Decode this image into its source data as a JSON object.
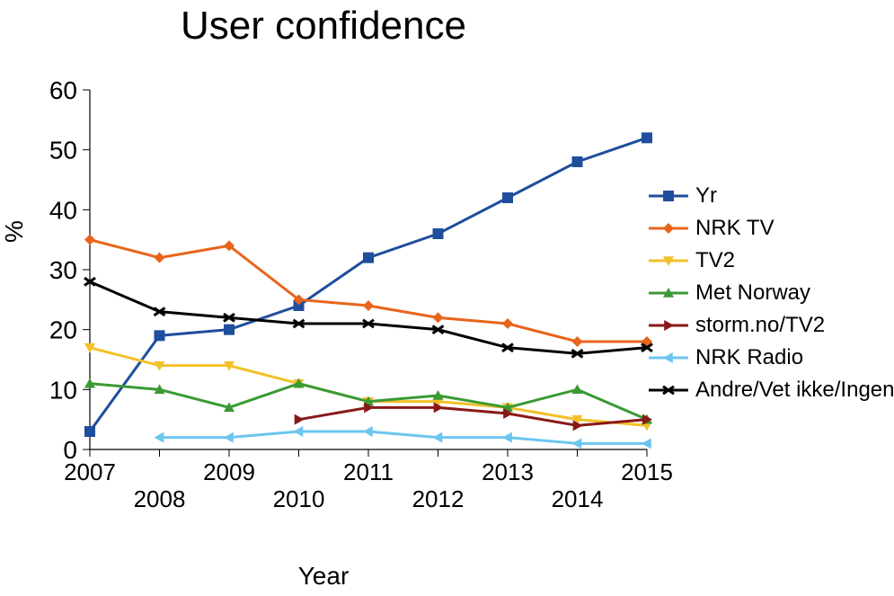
{
  "title": "User confidence",
  "ylabel": "%",
  "xlabel": "Year",
  "ylim": [
    0,
    60
  ],
  "ytick_step": 10,
  "yticks": [
    0,
    10,
    20,
    30,
    40,
    50,
    60
  ],
  "xlim": [
    2007,
    2015
  ],
  "xticks_bottom": [
    2007,
    2009,
    2011,
    2013,
    2015
  ],
  "xticks_off": [
    2008,
    2010,
    2012,
    2014
  ],
  "background_color": "#ffffff",
  "axis_color": "#000000",
  "tick_fontsize": 28,
  "line_width": 3,
  "marker_size": 6,
  "years": [
    2007,
    2008,
    2009,
    2010,
    2011,
    2012,
    2013,
    2014,
    2015
  ],
  "series": [
    {
      "key": "yr",
      "label": "Yr",
      "color": "#1f4e9c",
      "marker": "square",
      "values": [
        3,
        19,
        20,
        24,
        32,
        36,
        42,
        48,
        52
      ]
    },
    {
      "key": "nrktv",
      "label": "NRK TV",
      "color": "#e8641b",
      "marker": "diamond",
      "values": [
        35,
        32,
        34,
        25,
        24,
        22,
        21,
        18,
        18
      ]
    },
    {
      "key": "tv2",
      "label": "TV2",
      "color": "#f2c028",
      "marker": "tri-down",
      "values": [
        17,
        14,
        14,
        11,
        8,
        8,
        7,
        5,
        4
      ]
    },
    {
      "key": "met",
      "label": "Met Norway",
      "color": "#3a9a33",
      "marker": "tri-up",
      "values": [
        11,
        10,
        7,
        11,
        8,
        9,
        7,
        10,
        5
      ]
    },
    {
      "key": "storm",
      "label": "storm.no/TV2",
      "color": "#8a1818",
      "marker": "tri-right",
      "values": [
        null,
        null,
        null,
        5,
        7,
        7,
        6,
        4,
        5
      ]
    },
    {
      "key": "nrkradio",
      "label": "NRK Radio",
      "color": "#6cc6ef",
      "marker": "tri-left",
      "values": [
        null,
        2,
        2,
        3,
        3,
        2,
        2,
        1,
        1
      ]
    },
    {
      "key": "andre",
      "label": "Andre/Vet ikke/Ingen",
      "color": "#000000",
      "marker": "star",
      "values": [
        28,
        23,
        22,
        21,
        21,
        20,
        17,
        16,
        17
      ]
    }
  ],
  "legend_order": [
    "yr",
    "nrktv",
    "tv2",
    "met",
    "storm",
    "nrkradio",
    "andre"
  ]
}
